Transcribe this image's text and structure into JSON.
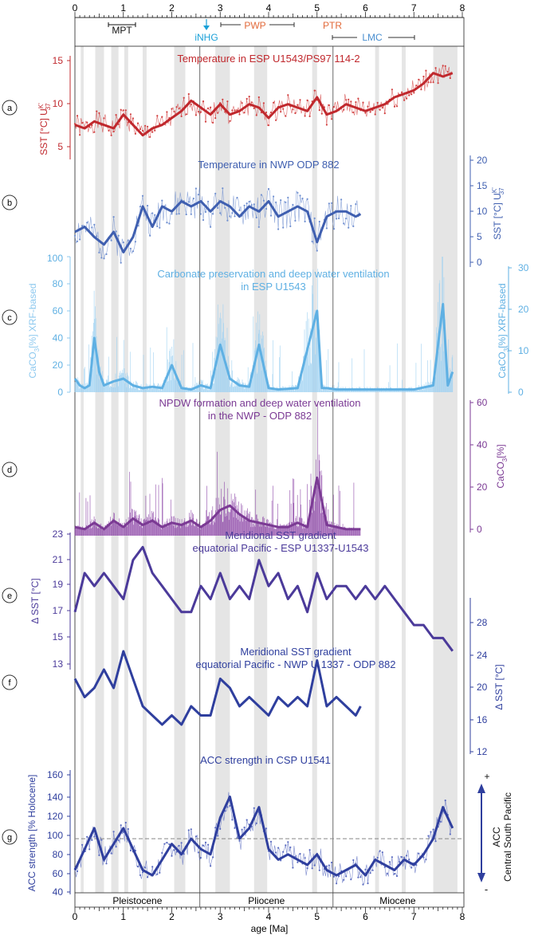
{
  "figure": {
    "x_axis": {
      "label": "age [Ma]",
      "min": 0,
      "max": 8,
      "ticks": [
        "0",
        "1",
        "2",
        "3",
        "4",
        "5",
        "6",
        "7",
        "8"
      ]
    },
    "events": {
      "mpt": {
        "label": "MPT",
        "start": 0.7,
        "end": 1.25
      },
      "inhg": {
        "label": "iNHG",
        "at": 2.7
      },
      "pwp": {
        "label": "PWP",
        "start": 3.0,
        "end": 4.5
      },
      "ptr": {
        "label": "PTR",
        "at": 5.3
      },
      "lmc": {
        "label": "LMC",
        "start": 5.3,
        "end": 7.0
      }
    },
    "epochs": [
      {
        "name": "Pleistocene",
        "start": 0,
        "end": 2.58
      },
      {
        "name": "Pliocene",
        "start": 2.58,
        "end": 5.33
      },
      {
        "name": "Miocene",
        "start": 5.33,
        "end": 8.0
      }
    ],
    "boundaries": [
      2.58,
      5.33
    ],
    "shading": [
      [
        0.12,
        0.18
      ],
      [
        0.42,
        0.6
      ],
      [
        0.75,
        0.9
      ],
      [
        1.02,
        1.1
      ],
      [
        1.4,
        1.48
      ],
      [
        2.05,
        2.28
      ],
      [
        2.9,
        3.2
      ],
      [
        3.7,
        3.97
      ],
      [
        4.9,
        5.0
      ],
      [
        6.2,
        6.28
      ],
      [
        6.75,
        6.83
      ],
      [
        7.4,
        7.9
      ]
    ],
    "panels": {
      "a": {
        "letter": "a",
        "title": "Temperature in ESP U1543/PS97 114-2",
        "ylabel": "SST [°C] U",
        "ylabel_sup": "K'",
        "ylabel_sub": "37",
        "ticks": [
          "5",
          "10",
          "15"
        ]
      },
      "b": {
        "letter": "b",
        "title": "Temperature in NWP ODP 882",
        "ylabel": "SST [°C] U",
        "ylabel_sup": "K'",
        "ylabel_sub": "37",
        "ticks": [
          "0",
          "5",
          "10",
          "15",
          "20"
        ]
      },
      "c": {
        "letter": "c",
        "title_1": "Carbonate preservation and deep water ventilation",
        "title_2": "in ESP U1543",
        "ylabel_left": "CaCO",
        "ylabel_left_rest": "[%] XRF-based",
        "ylabel_right": "CaCO",
        "ylabel_right_rest": "[%] XRF-based",
        "sub3": "3",
        "ticks_left": [
          "0",
          "20",
          "40",
          "60",
          "80",
          "100"
        ],
        "ticks_right": [
          "0",
          "10",
          "20",
          "30"
        ]
      },
      "d": {
        "letter": "d",
        "title_1": "NPDW formation and deep water ventilation",
        "title_2": "in the NWP - ODP 882",
        "ylabel": "CaCO",
        "ylabel_rest": "[%]",
        "sub3": "3",
        "ticks": [
          "0",
          "20",
          "40",
          "60"
        ]
      },
      "e": {
        "letter": "e",
        "title_1": "Meridional SST gradient",
        "title_2": "equatorial Pacific - ESP U1337-U1543",
        "ylabel": "Δ SST [°C]",
        "ticks": [
          "13",
          "15",
          "17",
          "19",
          "21",
          "23"
        ]
      },
      "f": {
        "letter": "f",
        "title_1": "Meridional SST gradient",
        "title_2": "equatorial Pacific - NWP U 1337 - ODP 882",
        "ylabel": "Δ SST [°C]",
        "ticks": [
          "12",
          "16",
          "20",
          "24",
          "28"
        ]
      },
      "g": {
        "letter": "g",
        "title": "ACC strength in CSP U1541",
        "ylabel": "ACC strength [% Holocene]",
        "ticks": [
          "40",
          "60",
          "80",
          "100",
          "120",
          "140",
          "160"
        ],
        "right_label_1": "ACC",
        "right_label_2": "Central South Pacific",
        "plus": "+",
        "minus": "-"
      }
    }
  },
  "chart_data": [
    {
      "type": "line",
      "panel": "a",
      "title": "Temperature in ESP U1543/PS97 114-2",
      "ylabel": "SST [°C] UK'37",
      "ylim": [
        2,
        17
      ],
      "x": [
        0,
        0.2,
        0.4,
        0.6,
        0.8,
        1.0,
        1.2,
        1.4,
        1.6,
        1.8,
        2.0,
        2.2,
        2.4,
        2.6,
        2.8,
        3.0,
        3.2,
        3.4,
        3.6,
        3.8,
        4.0,
        4.2,
        4.4,
        4.6,
        4.8,
        5.0,
        5.2,
        5.4,
        5.6,
        5.8,
        6.0,
        6.2,
        6.4,
        6.6,
        6.8,
        7.0,
        7.2,
        7.4,
        7.6,
        7.8
      ],
      "y": [
        7,
        6.5,
        7.5,
        7,
        6.5,
        8.5,
        7,
        5.5,
        6.5,
        7,
        8,
        9,
        10.5,
        9.5,
        8.5,
        10,
        8.5,
        9,
        10,
        9.5,
        8,
        9.5,
        10,
        9.5,
        9,
        11,
        8.5,
        9,
        10,
        9.5,
        9,
        9.5,
        10,
        11,
        11.5,
        12,
        13,
        14.5,
        14,
        14.5
      ]
    },
    {
      "type": "line",
      "panel": "b",
      "title": "Temperature in NWP ODP 882",
      "ylabel": "SST [°C] UK'37",
      "ylim": [
        -2,
        21
      ],
      "x": [
        0,
        0.2,
        0.4,
        0.6,
        0.8,
        1.0,
        1.2,
        1.4,
        1.6,
        1.8,
        2.0,
        2.2,
        2.4,
        2.6,
        2.8,
        3.0,
        3.2,
        3.4,
        3.6,
        3.8,
        4.0,
        4.2,
        4.4,
        4.6,
        4.8,
        5.0,
        5.2,
        5.4,
        5.6,
        5.8,
        5.9
      ],
      "y": [
        6,
        7,
        5,
        3.5,
        6,
        2,
        5,
        11,
        7,
        11,
        10,
        12,
        11,
        12,
        10,
        12,
        11,
        9,
        11,
        10,
        12,
        9,
        10,
        11,
        10,
        4,
        9,
        10,
        10,
        9,
        9.5
      ]
    },
    {
      "type": "line",
      "panel": "c",
      "title": "Carbonate preservation and deep water ventilation in ESP U1543",
      "ylabel": "CaCO3 [%] XRF-based",
      "ylim": [
        0,
        100
      ],
      "x": [
        0,
        0.1,
        0.2,
        0.3,
        0.4,
        0.5,
        0.6,
        0.8,
        1.0,
        1.2,
        1.4,
        1.6,
        1.8,
        2.0,
        2.2,
        2.4,
        2.6,
        2.8,
        3.0,
        3.2,
        3.4,
        3.6,
        3.8,
        4.0,
        4.2,
        4.6,
        5.0,
        5.1,
        5.2,
        5.4,
        6.0,
        7.0,
        7.4,
        7.6,
        7.7,
        7.8
      ],
      "y": [
        10,
        5,
        3,
        5,
        40,
        15,
        5,
        8,
        10,
        5,
        3,
        4,
        3,
        20,
        3,
        2,
        5,
        3,
        35,
        10,
        5,
        4,
        35,
        3,
        2,
        3,
        60,
        3,
        3,
        2,
        2,
        2,
        5,
        65,
        5,
        15
      ]
    },
    {
      "type": "line",
      "panel": "d",
      "title": "NPDW formation and deep water ventilation in the NWP - ODP 882",
      "ylabel": "CaCO3 [%]",
      "ylim": [
        -2,
        60
      ],
      "x": [
        0,
        0.2,
        0.4,
        0.6,
        0.8,
        1.0,
        1.2,
        1.4,
        1.6,
        1.8,
        2.0,
        2.2,
        2.4,
        2.6,
        2.8,
        3.0,
        3.2,
        3.4,
        3.6,
        3.8,
        4.0,
        4.2,
        4.4,
        4.6,
        4.8,
        5.0,
        5.2,
        5.4,
        5.6,
        5.9
      ],
      "y": [
        2,
        1,
        4,
        1,
        5,
        2,
        6,
        3,
        5,
        2,
        4,
        3,
        5,
        2,
        5,
        10,
        12,
        8,
        5,
        4,
        3,
        2,
        2,
        4,
        2,
        25,
        3,
        2,
        1,
        1
      ]
    },
    {
      "type": "line",
      "panel": "e",
      "title": "Meridional SST gradient equatorial Pacific - ESP U1337-U1543",
      "ylabel": "Δ SST [°C]",
      "ylim": [
        13,
        23
      ],
      "x": [
        0,
        0.2,
        0.4,
        0.6,
        0.8,
        1.0,
        1.2,
        1.4,
        1.6,
        1.8,
        2.0,
        2.2,
        2.4,
        2.6,
        2.8,
        3.0,
        3.2,
        3.4,
        3.6,
        3.8,
        4.0,
        4.2,
        4.4,
        4.6,
        4.8,
        5.0,
        5.2,
        5.4,
        5.6,
        5.8,
        6.0,
        6.2,
        6.4,
        6.6,
        6.8,
        7.0,
        7.2,
        7.4,
        7.6,
        7.8
      ],
      "y": [
        17,
        20,
        19,
        20,
        19,
        18,
        21,
        22,
        20,
        19,
        18,
        17,
        17,
        19,
        18,
        20,
        18,
        19,
        18,
        21,
        19,
        20,
        18,
        19,
        17,
        20,
        18,
        19,
        19,
        18,
        19,
        18,
        19,
        18,
        17,
        16,
        16,
        15,
        15,
        14
      ]
    },
    {
      "type": "line",
      "panel": "f",
      "title": "Meridional SST gradient equatorial Pacific - NWP U 1337 - ODP 882",
      "ylabel": "Δ SST [°C]",
      "ylim": [
        12,
        28
      ],
      "x": [
        0,
        0.2,
        0.4,
        0.6,
        0.8,
        1.0,
        1.2,
        1.4,
        1.6,
        1.8,
        2.0,
        2.2,
        2.4,
        2.6,
        2.8,
        3.0,
        3.2,
        3.4,
        3.6,
        3.8,
        4.0,
        4.2,
        4.4,
        4.6,
        4.8,
        5.0,
        5.2,
        5.4,
        5.6,
        5.8,
        5.9
      ],
      "y": [
        21,
        19,
        20,
        22,
        20,
        24,
        21,
        18,
        17,
        16,
        17,
        16,
        18,
        17,
        17,
        21,
        20,
        18,
        19,
        18,
        17,
        19,
        18,
        19,
        18,
        23,
        18,
        19,
        18,
        17,
        18
      ]
    },
    {
      "type": "line",
      "panel": "g",
      "title": "ACC strength in CSP U1541",
      "ylabel": "ACC strength [% Holocene]",
      "ylim": [
        40,
        170
      ],
      "reference_line": 100,
      "x": [
        0,
        0.2,
        0.4,
        0.6,
        0.8,
        1.0,
        1.2,
        1.4,
        1.6,
        1.8,
        2.0,
        2.2,
        2.4,
        2.6,
        2.8,
        3.0,
        3.2,
        3.4,
        3.6,
        3.8,
        4.0,
        4.2,
        4.4,
        4.6,
        4.8,
        5.0,
        5.2,
        5.4,
        5.6,
        5.8,
        6.0,
        6.2,
        6.4,
        6.6,
        6.8,
        7.0,
        7.2,
        7.4,
        7.6,
        7.8
      ],
      "y": [
        70,
        90,
        110,
        80,
        95,
        110,
        90,
        70,
        65,
        80,
        95,
        85,
        100,
        90,
        85,
        120,
        140,
        100,
        110,
        130,
        90,
        80,
        85,
        80,
        75,
        85,
        70,
        65,
        70,
        75,
        65,
        80,
        75,
        70,
        80,
        75,
        85,
        100,
        130,
        110
      ]
    }
  ]
}
